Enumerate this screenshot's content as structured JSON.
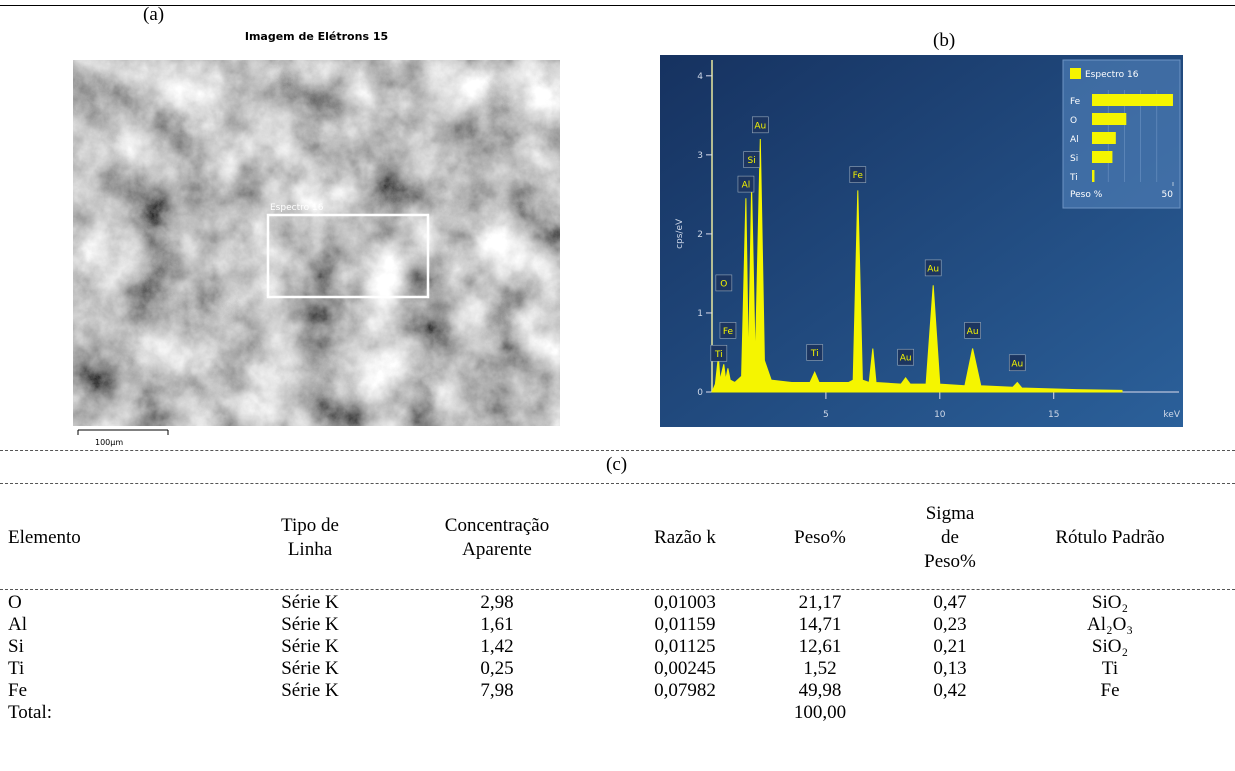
{
  "panels": {
    "a": "(a)",
    "b": "(b)",
    "c": "(c)"
  },
  "image": {
    "title": "Imagem de Elétrons 15",
    "region_label": "Espectro 16",
    "scale_bar": "100µm"
  },
  "chart_data": [
    {
      "type": "area",
      "color": "#f5f500",
      "xlabel": "keV",
      "ylabel": "cps/eV",
      "xlim": [
        0,
        20.5
      ],
      "xticks": [
        5,
        10,
        15
      ],
      "ylim": [
        0,
        4.2
      ],
      "yticks": [
        0,
        1,
        2,
        3,
        4
      ],
      "x": [
        0,
        0.15,
        0.28,
        0.35,
        0.52,
        0.6,
        0.7,
        0.8,
        1.0,
        1.3,
        1.49,
        1.6,
        1.74,
        1.9,
        2.12,
        2.3,
        2.6,
        3.5,
        4.3,
        4.51,
        4.7,
        6.0,
        6.2,
        6.4,
        6.6,
        6.9,
        7.06,
        7.2,
        8.3,
        8.5,
        8.7,
        9.4,
        9.71,
        10.0,
        11.1,
        11.44,
        11.8,
        13.2,
        13.4,
        13.6,
        16,
        18
      ],
      "values": [
        0,
        0.1,
        0.45,
        0.15,
        0.35,
        0.15,
        0.3,
        0.15,
        0.12,
        0.2,
        2.45,
        0.3,
        2.6,
        0.35,
        3.2,
        0.4,
        0.15,
        0.12,
        0.12,
        0.25,
        0.12,
        0.12,
        0.15,
        2.55,
        0.15,
        0.12,
        0.55,
        0.12,
        0.1,
        0.18,
        0.1,
        0.1,
        1.35,
        0.1,
        0.08,
        0.55,
        0.08,
        0.06,
        0.12,
        0.05,
        0.03,
        0.02
      ],
      "annotations": [
        {
          "text": "Ti",
          "x": 0.3,
          "y": 0.49
        },
        {
          "text": "O",
          "x": 0.52,
          "y": 1.38
        },
        {
          "text": "Fe",
          "x": 0.7,
          "y": 0.78
        },
        {
          "text": "Al",
          "x": 1.49,
          "y": 2.63
        },
        {
          "text": "Si",
          "x": 1.74,
          "y": 2.94
        },
        {
          "text": "Au",
          "x": 2.12,
          "y": 3.38
        },
        {
          "text": "Ti",
          "x": 4.51,
          "y": 0.5
        },
        {
          "text": "Fe",
          "x": 6.4,
          "y": 2.75
        },
        {
          "text": "Au",
          "x": 8.5,
          "y": 0.44
        },
        {
          "text": "Au",
          "x": 9.71,
          "y": 1.57
        },
        {
          "text": "Au",
          "x": 11.44,
          "y": 0.78
        },
        {
          "text": "Au",
          "x": 13.4,
          "y": 0.37
        }
      ]
    },
    {
      "type": "bar",
      "orientation": "horizontal",
      "categories": [
        "Fe",
        "O",
        "Al",
        "Si",
        "Ti"
      ],
      "series": [
        {
          "name": "Espectro 16",
          "color": "#f5f500",
          "values": [
            49.98,
            21.17,
            14.71,
            12.61,
            1.52
          ]
        }
      ],
      "xlabel": "Peso %",
      "xlim": [
        0,
        50
      ],
      "xticks": [
        50
      ]
    }
  ],
  "table": {
    "headers": [
      "Elemento",
      "Tipo de Linha",
      "Concentração Aparente",
      "Razão k",
      "Peso%",
      "Sigma de Peso%",
      "Rótulo Padrão"
    ],
    "rows": [
      [
        "O",
        "Série K",
        "2,98",
        "0,01003",
        "21,17",
        "0,47",
        "SiO₂"
      ],
      [
        "Al",
        "Série K",
        "1,61",
        "0,01159",
        "14,71",
        "0,23",
        "Al₂O₃"
      ],
      [
        "Si",
        "Série K",
        "1,42",
        "0,01125",
        "12,61",
        "0,21",
        "SiO₂"
      ],
      [
        "Ti",
        "Série K",
        "0,25",
        "0,00245",
        "1,52",
        "0,13",
        "Ti"
      ],
      [
        "Fe",
        "Série K",
        "7,98",
        "0,07982",
        "49,98",
        "0,42",
        "Fe"
      ]
    ],
    "total": {
      "label": "Total:",
      "peso": "100,00"
    }
  }
}
